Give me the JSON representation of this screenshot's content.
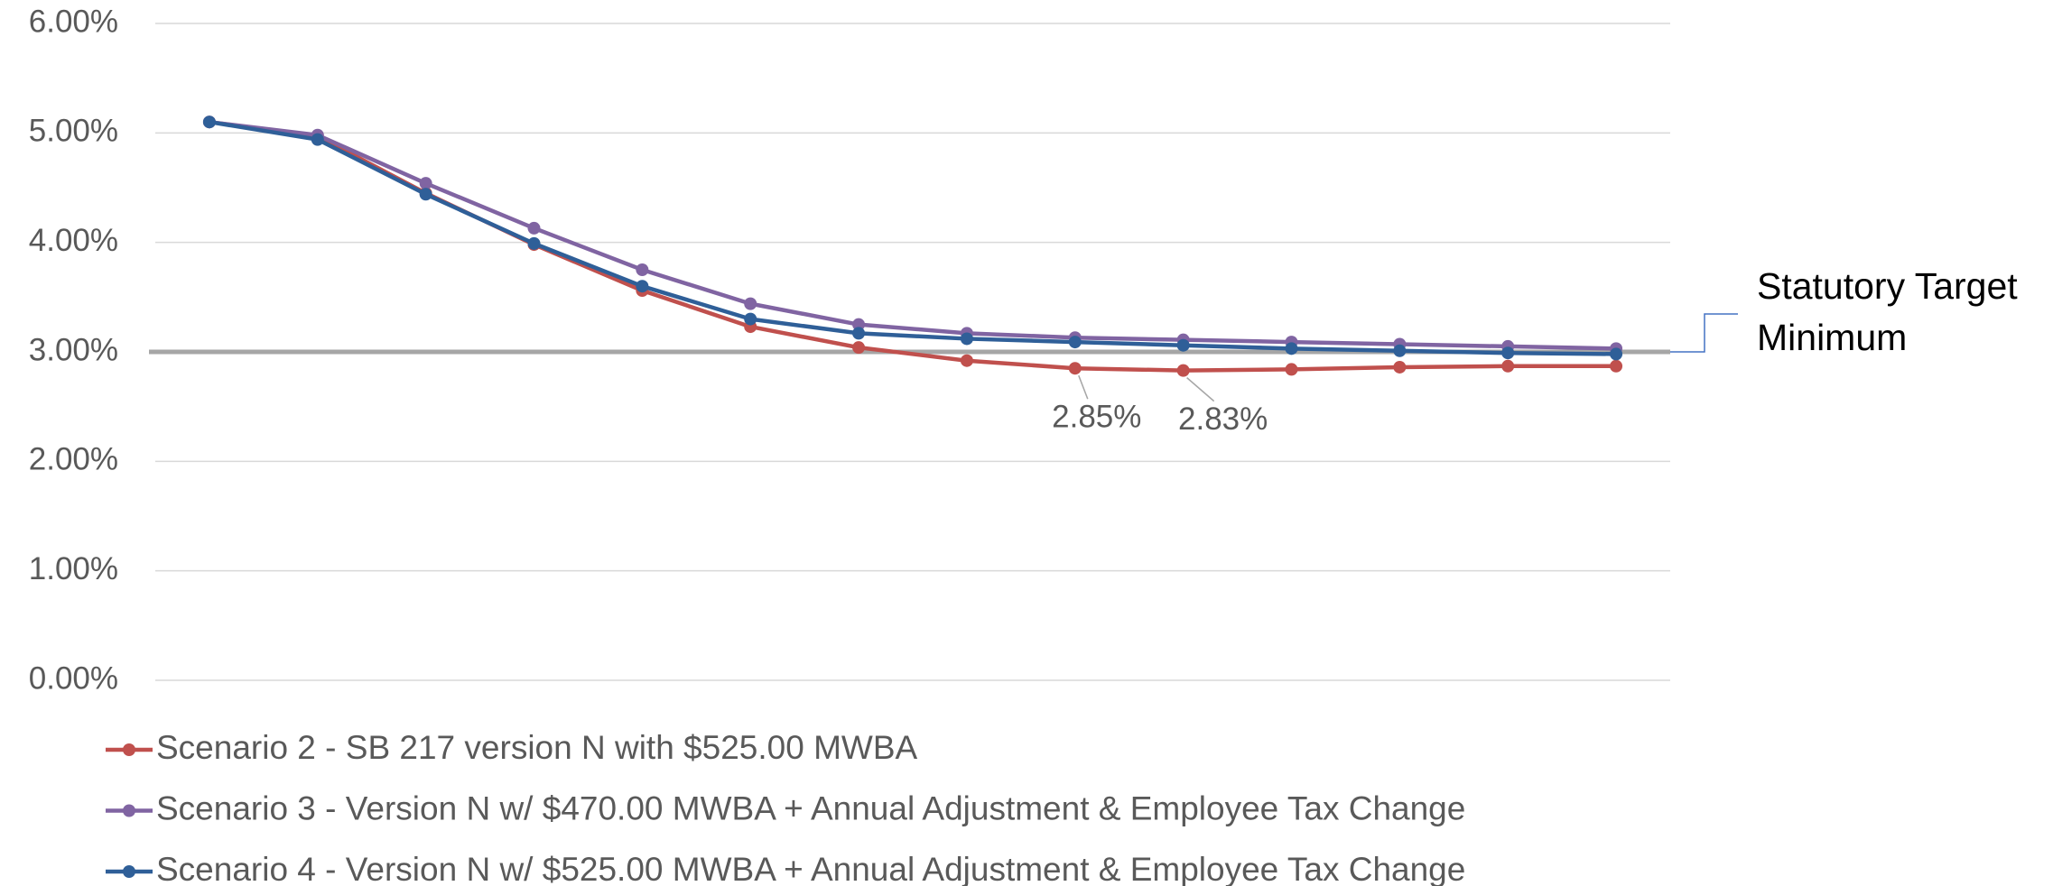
{
  "chart_data": {
    "type": "line",
    "categories": [
      null,
      null,
      null,
      null,
      null,
      null,
      null,
      null,
      null,
      null,
      null,
      null,
      null,
      null
    ],
    "series": [
      {
        "name": "Scenario 2 - SB 217 version N with $525.00 MWBA",
        "color": "#c0504d",
        "values": [
          5.1,
          4.97,
          4.45,
          3.98,
          3.56,
          3.23,
          3.04,
          2.92,
          2.85,
          2.83,
          2.84,
          2.86,
          2.87,
          2.87
        ],
        "value_labels": [
          null,
          null,
          null,
          null,
          null,
          null,
          null,
          null,
          "2.85%",
          "2.83%",
          null,
          null,
          null,
          null
        ]
      },
      {
        "name": "Scenario 3 - Version N w/ $470.00 MWBA + Annual Adjustment & Employee Tax Change",
        "color": "#8064a2",
        "values": [
          5.1,
          4.98,
          4.54,
          4.13,
          3.75,
          3.44,
          3.25,
          3.17,
          3.13,
          3.11,
          3.09,
          3.07,
          3.05,
          3.03
        ]
      },
      {
        "name": "Scenario 4 - Version N w/ $525.00 MWBA + Annual Adjustment & Employee Tax Change",
        "color": "#2f5f98",
        "values": [
          5.1,
          4.94,
          4.44,
          3.99,
          3.6,
          3.3,
          3.17,
          3.12,
          3.09,
          3.06,
          3.03,
          3.01,
          2.99,
          2.98
        ]
      }
    ],
    "reference_line": {
      "value": 3,
      "label": "Statutory Target Minimum",
      "color": "#a6a6a6"
    },
    "ylim": [
      0,
      6
    ],
    "yticks": [
      {
        "value": 0,
        "label": "0.00%"
      },
      {
        "value": 1,
        "label": "1.00%"
      },
      {
        "value": 2,
        "label": "2.00%"
      },
      {
        "value": 3,
        "label": "3.00%"
      },
      {
        "value": 4,
        "label": "4.00%"
      },
      {
        "value": 5,
        "label": "5.00%"
      },
      {
        "value": 6,
        "label": "6.00%"
      }
    ],
    "grid": true,
    "legend": "bottom"
  }
}
